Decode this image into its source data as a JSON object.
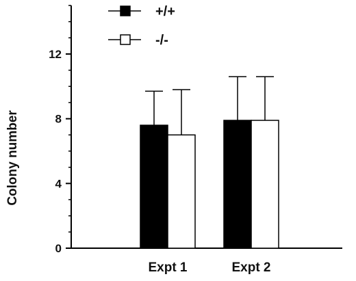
{
  "chart_data": {
    "type": "bar",
    "categories": [
      "Expt 1",
      "Expt 2"
    ],
    "series": [
      {
        "name": "+/+",
        "values": [
          7.6,
          7.9
        ],
        "errors": [
          2.1,
          2.7
        ],
        "fill": "#000000"
      },
      {
        "name": "-/-",
        "values": [
          7.0,
          7.9
        ],
        "errors": [
          2.8,
          2.7
        ],
        "fill": "#ffffff"
      }
    ],
    "xlabel": "",
    "ylabel": "Colony number",
    "ylim": [
      0,
      15
    ],
    "yticks": [
      0,
      4,
      8,
      12
    ],
    "yticks_minor_step": 1,
    "grid": false,
    "legend": "top-left",
    "error_bars": "upper only",
    "colors": {
      "axis": "#000000",
      "bar_stroke": "#000000"
    }
  }
}
